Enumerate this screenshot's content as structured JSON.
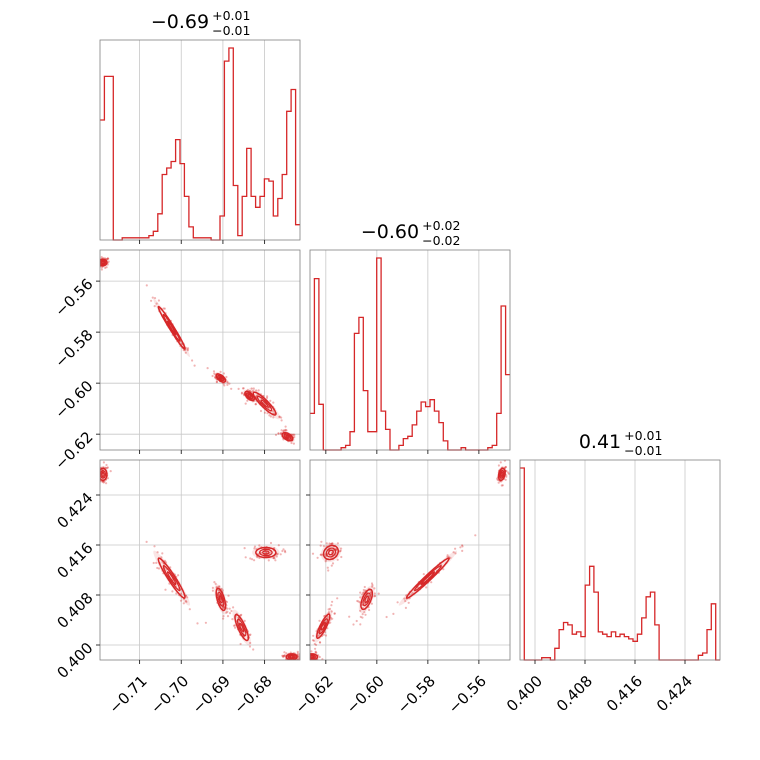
{
  "chart_data": {
    "type": "corner",
    "colors": {
      "line": "#d62728",
      "grid": "#c8c8c8",
      "frame": "#808080"
    },
    "parameters": [
      {
        "median": "−0.69",
        "plus": "+0.01",
        "minus": "−0.01",
        "range": [
          -0.7195,
          -0.6715
        ],
        "ticks": [
          -0.71,
          -0.7,
          -0.69,
          -0.68
        ],
        "tick_labels": [
          "−0.71",
          "−0.70",
          "−0.69",
          "−0.68"
        ]
      },
      {
        "median": "−0.60",
        "plus": "+0.02",
        "minus": "−0.02",
        "range": [
          -0.6262,
          -0.5478
        ],
        "ticks": [
          -0.62,
          -0.6,
          -0.58,
          -0.56
        ],
        "tick_labels": [
          "−0.62",
          "−0.60",
          "−0.58",
          "−0.56"
        ]
      },
      {
        "median": "0.41",
        "plus": "+0.01",
        "minus": "−0.01",
        "range": [
          0.3976,
          0.4296
        ],
        "ticks": [
          0.4,
          0.408,
          0.416,
          0.424
        ],
        "tick_labels": [
          "0.400",
          "0.408",
          "0.416",
          "0.424"
        ]
      }
    ],
    "histograms": [
      {
        "bin_edges_range": [
          -0.7195,
          -0.6715
        ],
        "counts": [
          55,
          75,
          75,
          0,
          0,
          1,
          1,
          1,
          1,
          1,
          1,
          2,
          4,
          12,
          30,
          33,
          36,
          46,
          35,
          20,
          6,
          1,
          1,
          1,
          1,
          0,
          0,
          11,
          82,
          88,
          25,
          2,
          20,
          42,
          20,
          15,
          20,
          28,
          27,
          11,
          19,
          30,
          59,
          69,
          7
        ]
      },
      {
        "bin_edges_range": [
          -0.6262,
          -0.5478
        ],
        "counts": [
          16,
          75,
          20,
          0,
          0,
          0,
          0,
          1,
          2,
          8,
          51,
          58,
          26,
          8,
          8,
          84,
          17,
          9,
          0,
          0,
          2,
          5,
          6,
          11,
          17,
          21,
          19,
          22,
          17,
          12,
          4,
          0,
          0,
          0,
          1,
          0,
          0,
          0,
          0,
          0,
          1,
          2,
          16,
          63,
          33
        ]
      },
      {
        "bin_edges_range": [
          0.3976,
          0.4296
        ],
        "counts": [
          82,
          0,
          0,
          0,
          0,
          1,
          1,
          0,
          5,
          13,
          16,
          15,
          11,
          12,
          10,
          32,
          40,
          29,
          12,
          11,
          10,
          12,
          10,
          11,
          10,
          9,
          8,
          11,
          18,
          27,
          29,
          15,
          0,
          0,
          0,
          0,
          0,
          0,
          0,
          0,
          0,
          2,
          3,
          13,
          24,
          0
        ]
      }
    ],
    "modes_2d": {
      "x0_x1": [
        {
          "x": -0.7188,
          "y": -0.5527,
          "sx": 0.0006,
          "sy": 0.0008,
          "rho": 0.0
        },
        {
          "x": -0.7023,
          "y": -0.5783,
          "sx": 0.002,
          "sy": 0.0052,
          "rho": -0.98
        },
        {
          "x": -0.6905,
          "y": -0.598,
          "sx": 0.0007,
          "sy": 0.001,
          "rho": -0.6
        },
        {
          "x": -0.6836,
          "y": -0.605,
          "sx": 0.0007,
          "sy": 0.0011,
          "rho": -0.6
        },
        {
          "x": -0.68,
          "y": -0.608,
          "sx": 0.0017,
          "sy": 0.0028,
          "rho": -0.9
        },
        {
          "x": -0.6745,
          "y": -0.621,
          "sx": 0.0008,
          "sy": 0.001,
          "rho": -0.5
        }
      ],
      "x0_x2": [
        {
          "x": -0.7188,
          "y": 0.4273,
          "sx": 0.0006,
          "sy": 0.0006,
          "rho": 0.0
        },
        {
          "x": -0.7023,
          "y": 0.4107,
          "sx": 0.002,
          "sy": 0.002,
          "rho": -0.95
        },
        {
          "x": -0.6905,
          "y": 0.4073,
          "sx": 0.0007,
          "sy": 0.0011,
          "rho": -0.6
        },
        {
          "x": -0.6855,
          "y": 0.4028,
          "sx": 0.001,
          "sy": 0.0013,
          "rho": -0.8
        },
        {
          "x": -0.6797,
          "y": 0.4148,
          "sx": 0.0015,
          "sy": 0.0005,
          "rho": 0.0
        },
        {
          "x": -0.6735,
          "y": 0.3981,
          "sx": 0.0008,
          "sy": 0.0003,
          "rho": 0.0
        }
      ],
      "x1_x2": [
        {
          "x": -0.6255,
          "y": 0.3981,
          "sx": 0.0014,
          "sy": 0.0003,
          "rho": 0.0
        },
        {
          "x": -0.621,
          "y": 0.403,
          "sx": 0.0016,
          "sy": 0.0012,
          "rho": 0.85
        },
        {
          "x": -0.618,
          "y": 0.4148,
          "sx": 0.0018,
          "sy": 0.0007,
          "rho": 0.2
        },
        {
          "x": -0.604,
          "y": 0.4073,
          "sx": 0.0014,
          "sy": 0.001,
          "rho": 0.6
        },
        {
          "x": -0.58,
          "y": 0.4107,
          "sx": 0.0052,
          "sy": 0.002,
          "rho": 0.98
        },
        {
          "x": -0.551,
          "y": 0.4273,
          "sx": 0.0008,
          "sy": 0.0006,
          "rho": 0.3
        }
      ]
    }
  }
}
